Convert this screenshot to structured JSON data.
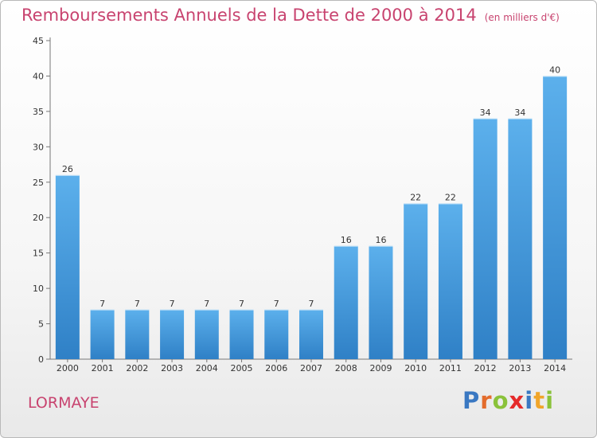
{
  "title": "Remboursements Annuels de la Dette de 2000 à 2014",
  "subtitle": "(en milliers d'€)",
  "commune": "LORMAYE",
  "logo": {
    "letters": [
      "P",
      "r",
      "o",
      "x",
      "i",
      "t",
      "i"
    ],
    "colors": [
      "#3a78c2",
      "#e36c2c",
      "#8ac23a",
      "#e52a2a",
      "#3a78c2",
      "#f0a52a",
      "#8ac23a"
    ]
  },
  "colors": {
    "bar": "#3b8fd4",
    "bar_top": "#5aaeea",
    "text_accent": "#c8436f"
  },
  "chart_data": {
    "type": "bar",
    "categories": [
      "2000",
      "2001",
      "2002",
      "2003",
      "2004",
      "2005",
      "2006",
      "2007",
      "2008",
      "2009",
      "2010",
      "2011",
      "2012",
      "2013",
      "2014"
    ],
    "values": [
      26,
      7,
      7,
      7,
      7,
      7,
      7,
      7,
      16,
      16,
      22,
      22,
      34,
      34,
      40
    ],
    "ylim": [
      0,
      45
    ],
    "yticks": [
      0,
      5,
      10,
      15,
      20,
      25,
      30,
      35,
      40,
      45
    ],
    "grid": false,
    "xlabel": "",
    "ylabel": ""
  }
}
